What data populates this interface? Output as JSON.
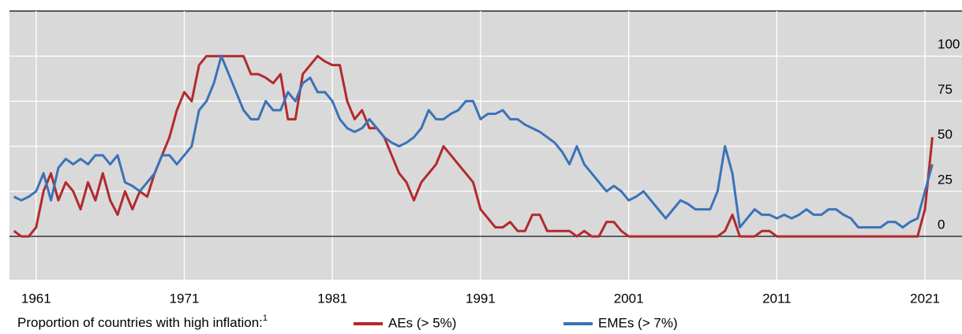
{
  "chart_data": {
    "type": "line",
    "legend_title": "Proportion of countries with high inflation:",
    "legend_title_note": "1",
    "x": [
      1959.5,
      1960,
      1960.5,
      1961,
      1961.5,
      1962,
      1962.5,
      1963,
      1963.5,
      1964,
      1964.5,
      1965,
      1965.5,
      1966,
      1966.5,
      1967,
      1967.5,
      1968,
      1968.5,
      1969,
      1969.5,
      1970,
      1970.5,
      1971,
      1971.5,
      1972,
      1972.5,
      1973,
      1973.5,
      1974,
      1974.5,
      1975,
      1975.5,
      1976,
      1976.5,
      1977,
      1977.5,
      1978,
      1978.5,
      1979,
      1979.5,
      1980,
      1980.5,
      1981,
      1981.5,
      1982,
      1982.5,
      1983,
      1983.5,
      1984,
      1984.5,
      1985,
      1985.5,
      1986,
      1986.5,
      1987,
      1987.5,
      1988,
      1988.5,
      1989,
      1989.5,
      1990,
      1990.5,
      1991,
      1991.5,
      1992,
      1992.5,
      1993,
      1993.5,
      1994,
      1994.5,
      1995,
      1995.5,
      1996,
      1996.5,
      1997,
      1997.5,
      1998,
      1998.5,
      1999,
      1999.5,
      2000,
      2000.5,
      2001,
      2001.5,
      2002,
      2002.5,
      2003,
      2003.5,
      2004,
      2004.5,
      2005,
      2005.5,
      2006,
      2006.5,
      2007,
      2007.5,
      2008,
      2008.5,
      2009,
      2009.5,
      2010,
      2010.5,
      2011,
      2011.5,
      2012,
      2012.5,
      2013,
      2013.5,
      2014,
      2014.5,
      2015,
      2015.5,
      2016,
      2016.5,
      2017,
      2017.5,
      2018,
      2018.5,
      2019,
      2019.5,
      2020,
      2020.5,
      2021,
      2021.5
    ],
    "series": [
      {
        "name": "AEs (> 5%)",
        "color": "#b22a2e",
        "values": [
          3,
          0,
          0,
          5,
          25,
          35,
          20,
          30,
          25,
          15,
          30,
          20,
          35,
          20,
          12,
          25,
          15,
          25,
          22,
          35,
          45,
          55,
          70,
          80,
          75,
          95,
          100,
          100,
          100,
          100,
          100,
          100,
          90,
          90,
          88,
          85,
          90,
          65,
          65,
          90,
          95,
          100,
          97,
          95,
          95,
          75,
          65,
          70,
          60,
          60,
          55,
          45,
          35,
          30,
          20,
          30,
          35,
          40,
          50,
          45,
          40,
          35,
          30,
          15,
          10,
          5,
          5,
          8,
          3,
          3,
          12,
          12,
          3,
          3,
          3,
          3,
          0,
          3,
          0,
          0,
          8,
          8,
          3,
          0,
          0,
          0,
          0,
          0,
          0,
          0,
          0,
          0,
          0,
          0,
          0,
          0,
          3,
          12,
          0,
          0,
          0,
          3,
          3,
          0,
          0,
          0,
          0,
          0,
          0,
          0,
          0,
          0,
          0,
          0,
          0,
          0,
          0,
          0,
          0,
          0,
          0,
          0,
          0,
          15,
          55
        ]
      },
      {
        "name": "EMEs (> 7%)",
        "color": "#3a73b8",
        "values": [
          22,
          20,
          22,
          25,
          35,
          20,
          38,
          43,
          40,
          43,
          40,
          45,
          45,
          40,
          45,
          30,
          28,
          25,
          30,
          35,
          45,
          45,
          40,
          45,
          50,
          70,
          75,
          85,
          100,
          90,
          80,
          70,
          65,
          65,
          75,
          70,
          70,
          80,
          75,
          85,
          88,
          80,
          80,
          75,
          65,
          60,
          58,
          60,
          65,
          60,
          55,
          52,
          50,
          52,
          55,
          60,
          70,
          65,
          65,
          68,
          70,
          75,
          75,
          65,
          68,
          68,
          70,
          65,
          65,
          62,
          60,
          58,
          55,
          52,
          47,
          40,
          50,
          40,
          35,
          30,
          25,
          28,
          25,
          20,
          22,
          25,
          20,
          15,
          10,
          15,
          20,
          18,
          15,
          15,
          15,
          25,
          50,
          35,
          5,
          10,
          15,
          12,
          12,
          10,
          12,
          10,
          12,
          15,
          12,
          12,
          15,
          15,
          12,
          10,
          5,
          5,
          5,
          5,
          8,
          8,
          5,
          8,
          10,
          25,
          40
        ]
      }
    ],
    "xlim": [
      1959.2,
      2023.5
    ],
    "xticks": [
      1961,
      1971,
      1981,
      1991,
      2001,
      2011,
      2021
    ],
    "ylim": [
      -24,
      125
    ],
    "yticks": [
      0,
      25,
      50,
      75,
      100
    ],
    "grid": true
  }
}
